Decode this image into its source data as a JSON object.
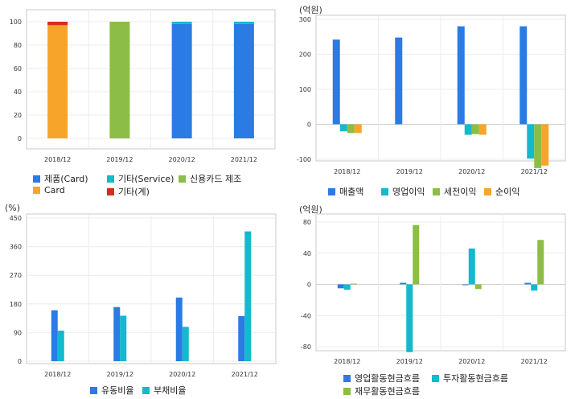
{
  "chart_data": [
    {
      "id": "product-mix",
      "type": "bar",
      "stacked": true,
      "categories": [
        "2018/12",
        "2019/12",
        "2020/12",
        "2021/12"
      ],
      "ylim": [
        0,
        100
      ],
      "yticks": [
        0,
        20,
        40,
        60,
        80,
        100
      ],
      "unit": "",
      "grid": true,
      "series": [
        {
          "name": "제품(Card)",
          "color": "#2B7BE4",
          "values": [
            0,
            0,
            98,
            98
          ]
        },
        {
          "name": "기타(Service)",
          "color": "#13B9CC",
          "values": [
            0,
            0,
            2,
            2
          ]
        },
        {
          "name": "신용카드 제조",
          "color": "#8BBD47",
          "values": [
            0,
            100,
            0,
            0
          ]
        },
        {
          "name": "Card",
          "color": "#F7A52A",
          "values": [
            97,
            0,
            0,
            0
          ]
        },
        {
          "name": "기타(계)",
          "color": "#D72A22",
          "values": [
            3,
            0,
            0,
            0
          ]
        }
      ]
    },
    {
      "id": "income",
      "type": "bar",
      "categories": [
        "2018/12",
        "2019/12",
        "2020/12",
        "2021/12"
      ],
      "ylim": [
        -150,
        300
      ],
      "yticks": [
        -100,
        0,
        100,
        200,
        300
      ],
      "unit": "(억원)",
      "grid": true,
      "series": [
        {
          "name": "매출액",
          "color": "#2B7BE4",
          "values": [
            242,
            248,
            280,
            280
          ]
        },
        {
          "name": "영업이익",
          "color": "#13B9CC",
          "values": [
            -20,
            0,
            -30,
            -98
          ]
        },
        {
          "name": "세전이익",
          "color": "#8BBD47",
          "values": [
            -25,
            0,
            -28,
            -125
          ]
        },
        {
          "name": "순이익",
          "color": "#F7A52A",
          "values": [
            -25,
            0,
            -30,
            -118
          ]
        }
      ]
    },
    {
      "id": "ratios",
      "type": "bar",
      "categories": [
        "2018/12",
        "2019/12",
        "2020/12",
        "2021/12"
      ],
      "ylim": [
        0,
        450
      ],
      "yticks": [
        0,
        90,
        180,
        270,
        360,
        450
      ],
      "unit": "(%)",
      "grid": true,
      "series": [
        {
          "name": "유동비율",
          "color": "#2B7BE4",
          "values": [
            160,
            170,
            200,
            142
          ]
        },
        {
          "name": "부채비율",
          "color": "#13B9CC",
          "values": [
            96,
            143,
            108,
            408
          ]
        }
      ]
    },
    {
      "id": "cashflow",
      "type": "bar",
      "categories": [
        "2018/12",
        "2019/12",
        "2020/12",
        "2021/12"
      ],
      "ylim": [
        -100,
        85
      ],
      "yticks": [
        -80,
        -40,
        0,
        40,
        80
      ],
      "unit": "(억원)",
      "grid": true,
      "series": [
        {
          "name": "영업활동현금흐름",
          "color": "#2B7BE4",
          "values": [
            -5,
            2,
            -1,
            2
          ]
        },
        {
          "name": "투자활동현금흐름",
          "color": "#13B9CC",
          "values": [
            -7,
            -87,
            46,
            -8
          ]
        },
        {
          "name": "재무활동현금흐름",
          "color": "#8BBD47",
          "values": [
            1,
            76,
            -6,
            57
          ]
        }
      ]
    }
  ]
}
